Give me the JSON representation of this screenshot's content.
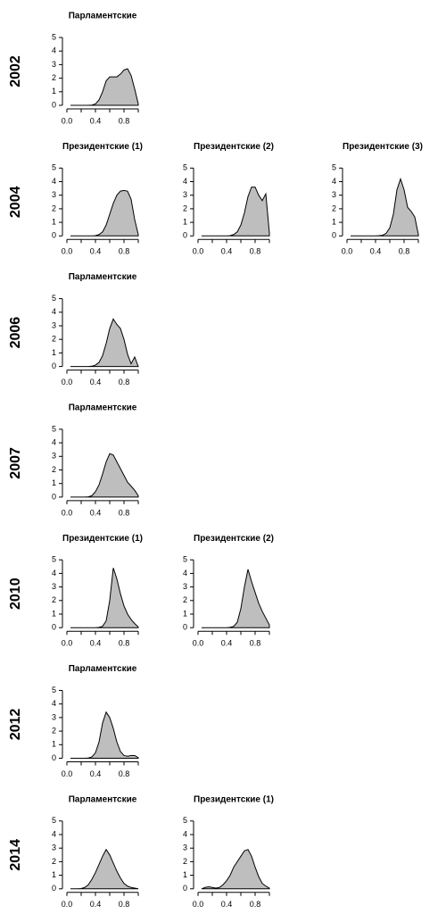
{
  "rows": [
    {
      "label": "2002",
      "chart_data": [
        {
          "type": "area",
          "title": "Парламентские",
          "x": [
            0.05,
            0.1,
            0.15,
            0.2,
            0.25,
            0.3,
            0.35,
            0.4,
            0.45,
            0.5,
            0.55,
            0.6,
            0.65,
            0.7,
            0.75,
            0.8,
            0.85,
            0.9,
            0.95,
            1.0
          ],
          "values": [
            0,
            0,
            0,
            0,
            0,
            0,
            0.02,
            0.1,
            0.4,
            1.0,
            1.8,
            2.1,
            2.1,
            2.1,
            2.3,
            2.6,
            2.7,
            2.2,
            1.2,
            0.1
          ],
          "color": "#bebebe",
          "xlim": [
            0,
            1
          ],
          "ylim": [
            0,
            5
          ],
          "xticks": [
            {
              "value": 0,
              "label": "0.0"
            },
            0.4,
            0.8
          ],
          "xminorticks": [
            0.2,
            0.6,
            1.0
          ],
          "yticks": [
            0,
            1,
            2,
            3,
            4,
            5
          ]
        }
      ]
    },
    {
      "label": "2004",
      "chart_data": [
        {
          "type": "area",
          "title": "Президентские (1)",
          "x": [
            0.05,
            0.1,
            0.15,
            0.2,
            0.25,
            0.3,
            0.35,
            0.4,
            0.45,
            0.5,
            0.55,
            0.6,
            0.65,
            0.7,
            0.75,
            0.8,
            0.85,
            0.9,
            0.95,
            1.0
          ],
          "values": [
            0,
            0,
            0,
            0,
            0,
            0,
            0,
            0.02,
            0.1,
            0.3,
            0.8,
            1.6,
            2.4,
            3.0,
            3.3,
            3.35,
            3.3,
            2.7,
            1.2,
            0.1
          ],
          "color": "#bebebe",
          "xlim": [
            0,
            1
          ],
          "ylim": [
            0,
            5
          ],
          "xticks": [
            {
              "value": 0,
              "label": "0.0"
            },
            0.4,
            0.8
          ],
          "xminorticks": [
            0.2,
            0.6,
            1.0
          ],
          "yticks": [
            0,
            1,
            2,
            3,
            4,
            5
          ]
        },
        {
          "type": "area",
          "title": "Президентские (2)",
          "x": [
            0.05,
            0.1,
            0.15,
            0.2,
            0.25,
            0.3,
            0.35,
            0.4,
            0.45,
            0.5,
            0.55,
            0.6,
            0.65,
            0.7,
            0.75,
            0.8,
            0.85,
            0.9,
            0.95,
            1.0
          ],
          "values": [
            0,
            0,
            0,
            0,
            0,
            0,
            0,
            0,
            0.02,
            0.1,
            0.3,
            0.8,
            1.7,
            2.9,
            3.6,
            3.6,
            3.0,
            2.6,
            3.1,
            0.2
          ],
          "color": "#bebebe",
          "xlim": [
            0,
            1
          ],
          "ylim": [
            0,
            5
          ],
          "xticks": [
            {
              "value": 0,
              "label": "0.0"
            },
            0.4,
            0.8
          ],
          "xminorticks": [
            0.2,
            0.6,
            1.0
          ],
          "yticks": [
            0,
            1,
            2,
            3,
            4,
            5
          ]
        },
        {
          "type": "area",
          "title": "Президентские (3)",
          "x": [
            0.05,
            0.1,
            0.15,
            0.2,
            0.25,
            0.3,
            0.35,
            0.4,
            0.45,
            0.5,
            0.55,
            0.6,
            0.65,
            0.7,
            0.75,
            0.8,
            0.85,
            0.9,
            0.95,
            1.0
          ],
          "values": [
            0,
            0,
            0,
            0,
            0,
            0,
            0,
            0,
            0.02,
            0.05,
            0.2,
            0.6,
            1.6,
            3.4,
            4.2,
            3.4,
            2.1,
            1.8,
            1.4,
            0.1
          ],
          "color": "#bebebe",
          "xlim": [
            0,
            1
          ],
          "ylim": [
            0,
            5
          ],
          "xticks": [
            {
              "value": 0,
              "label": "0.0"
            },
            0.4,
            0.8
          ],
          "xminorticks": [
            0.2,
            0.6,
            1.0
          ],
          "yticks": [
            0,
            1,
            2,
            3,
            4,
            5
          ]
        }
      ]
    },
    {
      "label": "2006",
      "chart_data": [
        {
          "type": "area",
          "title": "Парламентские",
          "x": [
            0.05,
            0.1,
            0.15,
            0.2,
            0.25,
            0.3,
            0.35,
            0.4,
            0.45,
            0.5,
            0.55,
            0.6,
            0.65,
            0.7,
            0.75,
            0.8,
            0.85,
            0.9,
            0.95,
            1.0
          ],
          "values": [
            0,
            0,
            0,
            0,
            0,
            0,
            0.02,
            0.1,
            0.3,
            0.8,
            1.7,
            2.8,
            3.5,
            3.1,
            2.8,
            2.0,
            0.9,
            0.2,
            0.7,
            0
          ],
          "color": "#bebebe",
          "xlim": [
            0,
            1
          ],
          "ylim": [
            0,
            5
          ],
          "xticks": [
            {
              "value": 0,
              "label": "0.0"
            },
            0.4,
            0.8
          ],
          "xminorticks": [
            0.2,
            0.6,
            1.0
          ],
          "yticks": [
            0,
            1,
            2,
            3,
            4,
            5
          ]
        }
      ]
    },
    {
      "label": "2007",
      "chart_data": [
        {
          "type": "area",
          "title": "Парламентские",
          "x": [
            0.05,
            0.1,
            0.15,
            0.2,
            0.25,
            0.3,
            0.35,
            0.4,
            0.45,
            0.5,
            0.55,
            0.6,
            0.65,
            0.7,
            0.75,
            0.8,
            0.85,
            0.9,
            0.95,
            1.0
          ],
          "values": [
            0,
            0,
            0,
            0,
            0,
            0.02,
            0.1,
            0.4,
            0.9,
            1.7,
            2.6,
            3.2,
            3.1,
            2.6,
            2.1,
            1.6,
            1.1,
            0.8,
            0.5,
            0.1
          ],
          "color": "#bebebe",
          "xlim": [
            0,
            1
          ],
          "ylim": [
            0,
            5
          ],
          "xticks": [
            {
              "value": 0,
              "label": "0.0"
            },
            0.4,
            0.8
          ],
          "xminorticks": [
            0.2,
            0.6,
            1.0
          ],
          "yticks": [
            0,
            1,
            2,
            3,
            4,
            5
          ]
        }
      ]
    },
    {
      "label": "2010",
      "chart_data": [
        {
          "type": "area",
          "title": "Президентские (1)",
          "x": [
            0.05,
            0.1,
            0.15,
            0.2,
            0.25,
            0.3,
            0.35,
            0.4,
            0.45,
            0.5,
            0.55,
            0.6,
            0.65,
            0.7,
            0.75,
            0.8,
            0.85,
            0.9,
            0.95,
            1.0
          ],
          "values": [
            0,
            0,
            0,
            0,
            0,
            0,
            0,
            0,
            0.02,
            0.1,
            0.5,
            2.0,
            4.4,
            3.6,
            2.5,
            1.6,
            1.0,
            0.6,
            0.3,
            0.05
          ],
          "color": "#bebebe",
          "xlim": [
            0,
            1
          ],
          "ylim": [
            0,
            5
          ],
          "xticks": [
            {
              "value": 0,
              "label": "0.0"
            },
            0.4,
            0.8
          ],
          "xminorticks": [
            0.2,
            0.6,
            1.0
          ],
          "yticks": [
            0,
            1,
            2,
            3,
            4,
            5
          ]
        },
        {
          "type": "area",
          "title": "Президентские (2)",
          "x": [
            0.05,
            0.1,
            0.15,
            0.2,
            0.25,
            0.3,
            0.35,
            0.4,
            0.45,
            0.5,
            0.55,
            0.6,
            0.65,
            0.7,
            0.75,
            0.8,
            0.85,
            0.9,
            0.95,
            1.0
          ],
          "values": [
            0,
            0,
            0,
            0,
            0,
            0,
            0,
            0,
            0.02,
            0.1,
            0.4,
            1.4,
            3.0,
            4.3,
            3.4,
            2.6,
            1.8,
            1.2,
            0.7,
            0.2
          ],
          "color": "#bebebe",
          "xlim": [
            0,
            1
          ],
          "ylim": [
            0,
            5
          ],
          "xticks": [
            {
              "value": 0,
              "label": "0.0"
            },
            0.4,
            0.8
          ],
          "xminorticks": [
            0.2,
            0.6,
            1.0
          ],
          "yticks": [
            0,
            1,
            2,
            3,
            4,
            5
          ]
        }
      ]
    },
    {
      "label": "2012",
      "chart_data": [
        {
          "type": "area",
          "title": "Парламентские",
          "x": [
            0.05,
            0.1,
            0.15,
            0.2,
            0.25,
            0.3,
            0.35,
            0.4,
            0.45,
            0.5,
            0.55,
            0.6,
            0.65,
            0.7,
            0.75,
            0.8,
            0.85,
            0.9,
            0.95,
            1.0
          ],
          "values": [
            0,
            0,
            0,
            0,
            0,
            0.02,
            0.1,
            0.4,
            1.2,
            2.6,
            3.4,
            3.0,
            2.2,
            1.2,
            0.5,
            0.2,
            0.15,
            0.2,
            0.2,
            0.05
          ],
          "color": "#bebebe",
          "xlim": [
            0,
            1
          ],
          "ylim": [
            0,
            5
          ],
          "xticks": [
            {
              "value": 0,
              "label": "0.0"
            },
            0.4,
            0.8
          ],
          "xminorticks": [
            0.2,
            0.6,
            1.0
          ],
          "yticks": [
            0,
            1,
            2,
            3,
            4,
            5
          ]
        }
      ]
    },
    {
      "label": "2014",
      "chart_data": [
        {
          "type": "area",
          "title": "Парламентские",
          "x": [
            0.05,
            0.1,
            0.15,
            0.2,
            0.25,
            0.3,
            0.35,
            0.4,
            0.45,
            0.5,
            0.55,
            0.6,
            0.65,
            0.7,
            0.75,
            0.8,
            0.85,
            0.9,
            0.95,
            1.0
          ],
          "values": [
            0,
            0,
            0,
            0.02,
            0.1,
            0.3,
            0.7,
            1.2,
            1.8,
            2.4,
            2.9,
            2.5,
            1.9,
            1.3,
            0.8,
            0.4,
            0.2,
            0.1,
            0.05,
            0
          ],
          "color": "#bebebe",
          "xlim": [
            0,
            1
          ],
          "ylim": [
            0,
            5
          ],
          "xticks": [
            {
              "value": 0,
              "label": "0.0"
            },
            0.4,
            0.8
          ],
          "xminorticks": [
            0.2,
            0.6,
            1.0
          ],
          "yticks": [
            0,
            1,
            2,
            3,
            4,
            5
          ]
        },
        {
          "type": "area",
          "title": "Президентские (1)",
          "x": [
            0.05,
            0.1,
            0.15,
            0.2,
            0.25,
            0.3,
            0.35,
            0.4,
            0.45,
            0.5,
            0.55,
            0.6,
            0.65,
            0.7,
            0.75,
            0.8,
            0.85,
            0.9,
            0.95,
            1.0
          ],
          "values": [
            0,
            0.1,
            0.15,
            0.1,
            0.05,
            0.1,
            0.3,
            0.6,
            1.0,
            1.6,
            2.0,
            2.4,
            2.8,
            2.9,
            2.4,
            1.6,
            0.9,
            0.4,
            0.2,
            0.05
          ],
          "color": "#bebebe",
          "xlim": [
            0,
            1
          ],
          "ylim": [
            0,
            5
          ],
          "xticks": [
            {
              "value": 0,
              "label": "0.0"
            },
            0.4,
            0.8
          ],
          "xminorticks": [
            0.2,
            0.6,
            1.0
          ],
          "yticks": [
            0,
            1,
            2,
            3,
            4,
            5
          ]
        }
      ]
    }
  ]
}
